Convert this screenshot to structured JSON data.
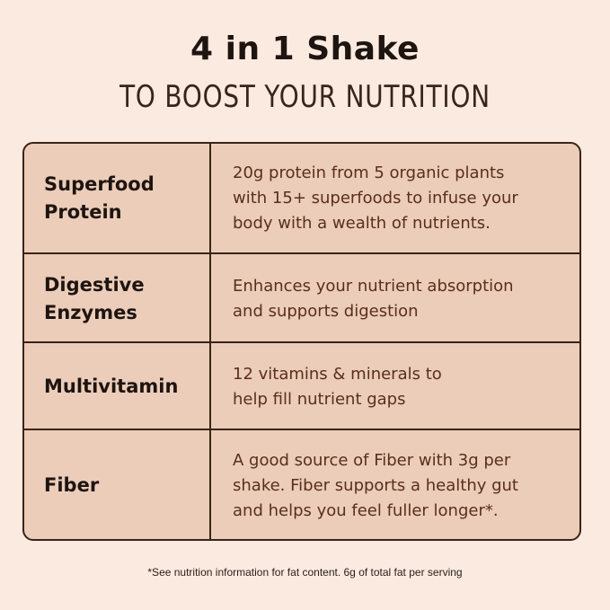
{
  "header": {
    "title": "4 in 1 Shake",
    "subtitle": "TO BOOST YOUR NUTRITION"
  },
  "table": {
    "rows": [
      {
        "label": "Superfood\nProtein",
        "description": "20g protein from 5 organic plants\nwith 15+ superfoods to infuse your\nbody with a wealth of nutrients."
      },
      {
        "label": "Digestive\nEnzymes",
        "description": "Enhances your nutrient absorption\nand supports digestion"
      },
      {
        "label": "Multivitamin",
        "description": "12 vitamins & minerals to\nhelp fill nutrient gaps"
      },
      {
        "label": "Fiber",
        "description": "A good source of Fiber with 3g per\nshake. Fiber supports a healthy gut\nand helps you feel fuller longer*."
      }
    ]
  },
  "footnote": "*See nutrition information for fat content. 6g of total fat per serving",
  "colors": {
    "background": "#fbeae0",
    "table_fill": "#ebcdb9",
    "border": "#3a2418",
    "description_text": "#5a2e1c"
  }
}
